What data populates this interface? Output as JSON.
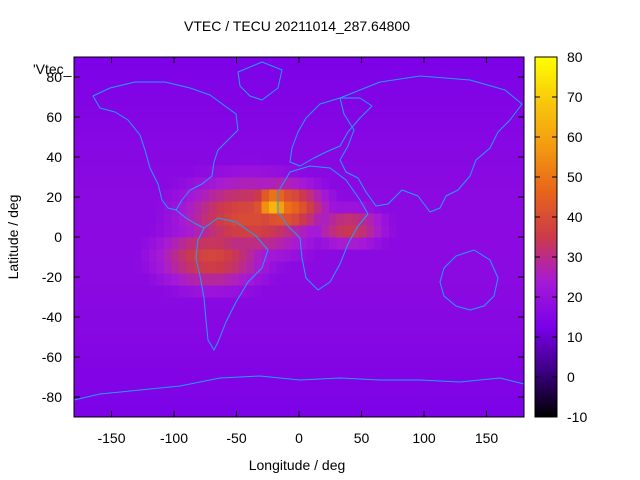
{
  "chart_data": {
    "type": "heatmap",
    "title": "VTEC / TECU 20211014_287.64800",
    "xlabel": "Longitude / deg",
    "ylabel": "Latitude / deg",
    "key_label": "'Vtec_",
    "xlim": [
      -180,
      180
    ],
    "ylim": [
      -90,
      90
    ],
    "x_ticks": [
      -150,
      -100,
      -50,
      0,
      50,
      100,
      150
    ],
    "y_ticks": [
      -80,
      -60,
      -40,
      -20,
      0,
      20,
      40,
      60,
      80
    ],
    "colorbar": {
      "range": [
        -10,
        80
      ],
      "ticks": [
        -10,
        0,
        10,
        20,
        30,
        40,
        50,
        60,
        70,
        80
      ],
      "stops": [
        "#000000",
        "#3a0080",
        "#7a00e8",
        "#a61ad6",
        "#cc3a4a",
        "#e8641a",
        "#f39a10",
        "#f8c80c",
        "#ffff00"
      ]
    },
    "tec_features": [
      {
        "lon": -20,
        "lat": 17,
        "value": 70,
        "spread_lon": 16,
        "spread_lat": 6
      },
      {
        "lon": -15,
        "lat": 15,
        "value": 50,
        "spread_lon": 35,
        "spread_lat": 12
      },
      {
        "lon": -70,
        "lat": -10,
        "value": 38,
        "spread_lon": 45,
        "spread_lat": 16
      },
      {
        "lon": -40,
        "lat": 10,
        "value": 40,
        "spread_lon": 55,
        "spread_lat": 20
      },
      {
        "lon": 40,
        "lat": 5,
        "value": 35,
        "spread_lon": 30,
        "spread_lat": 10
      }
    ],
    "background_value": 13
  }
}
